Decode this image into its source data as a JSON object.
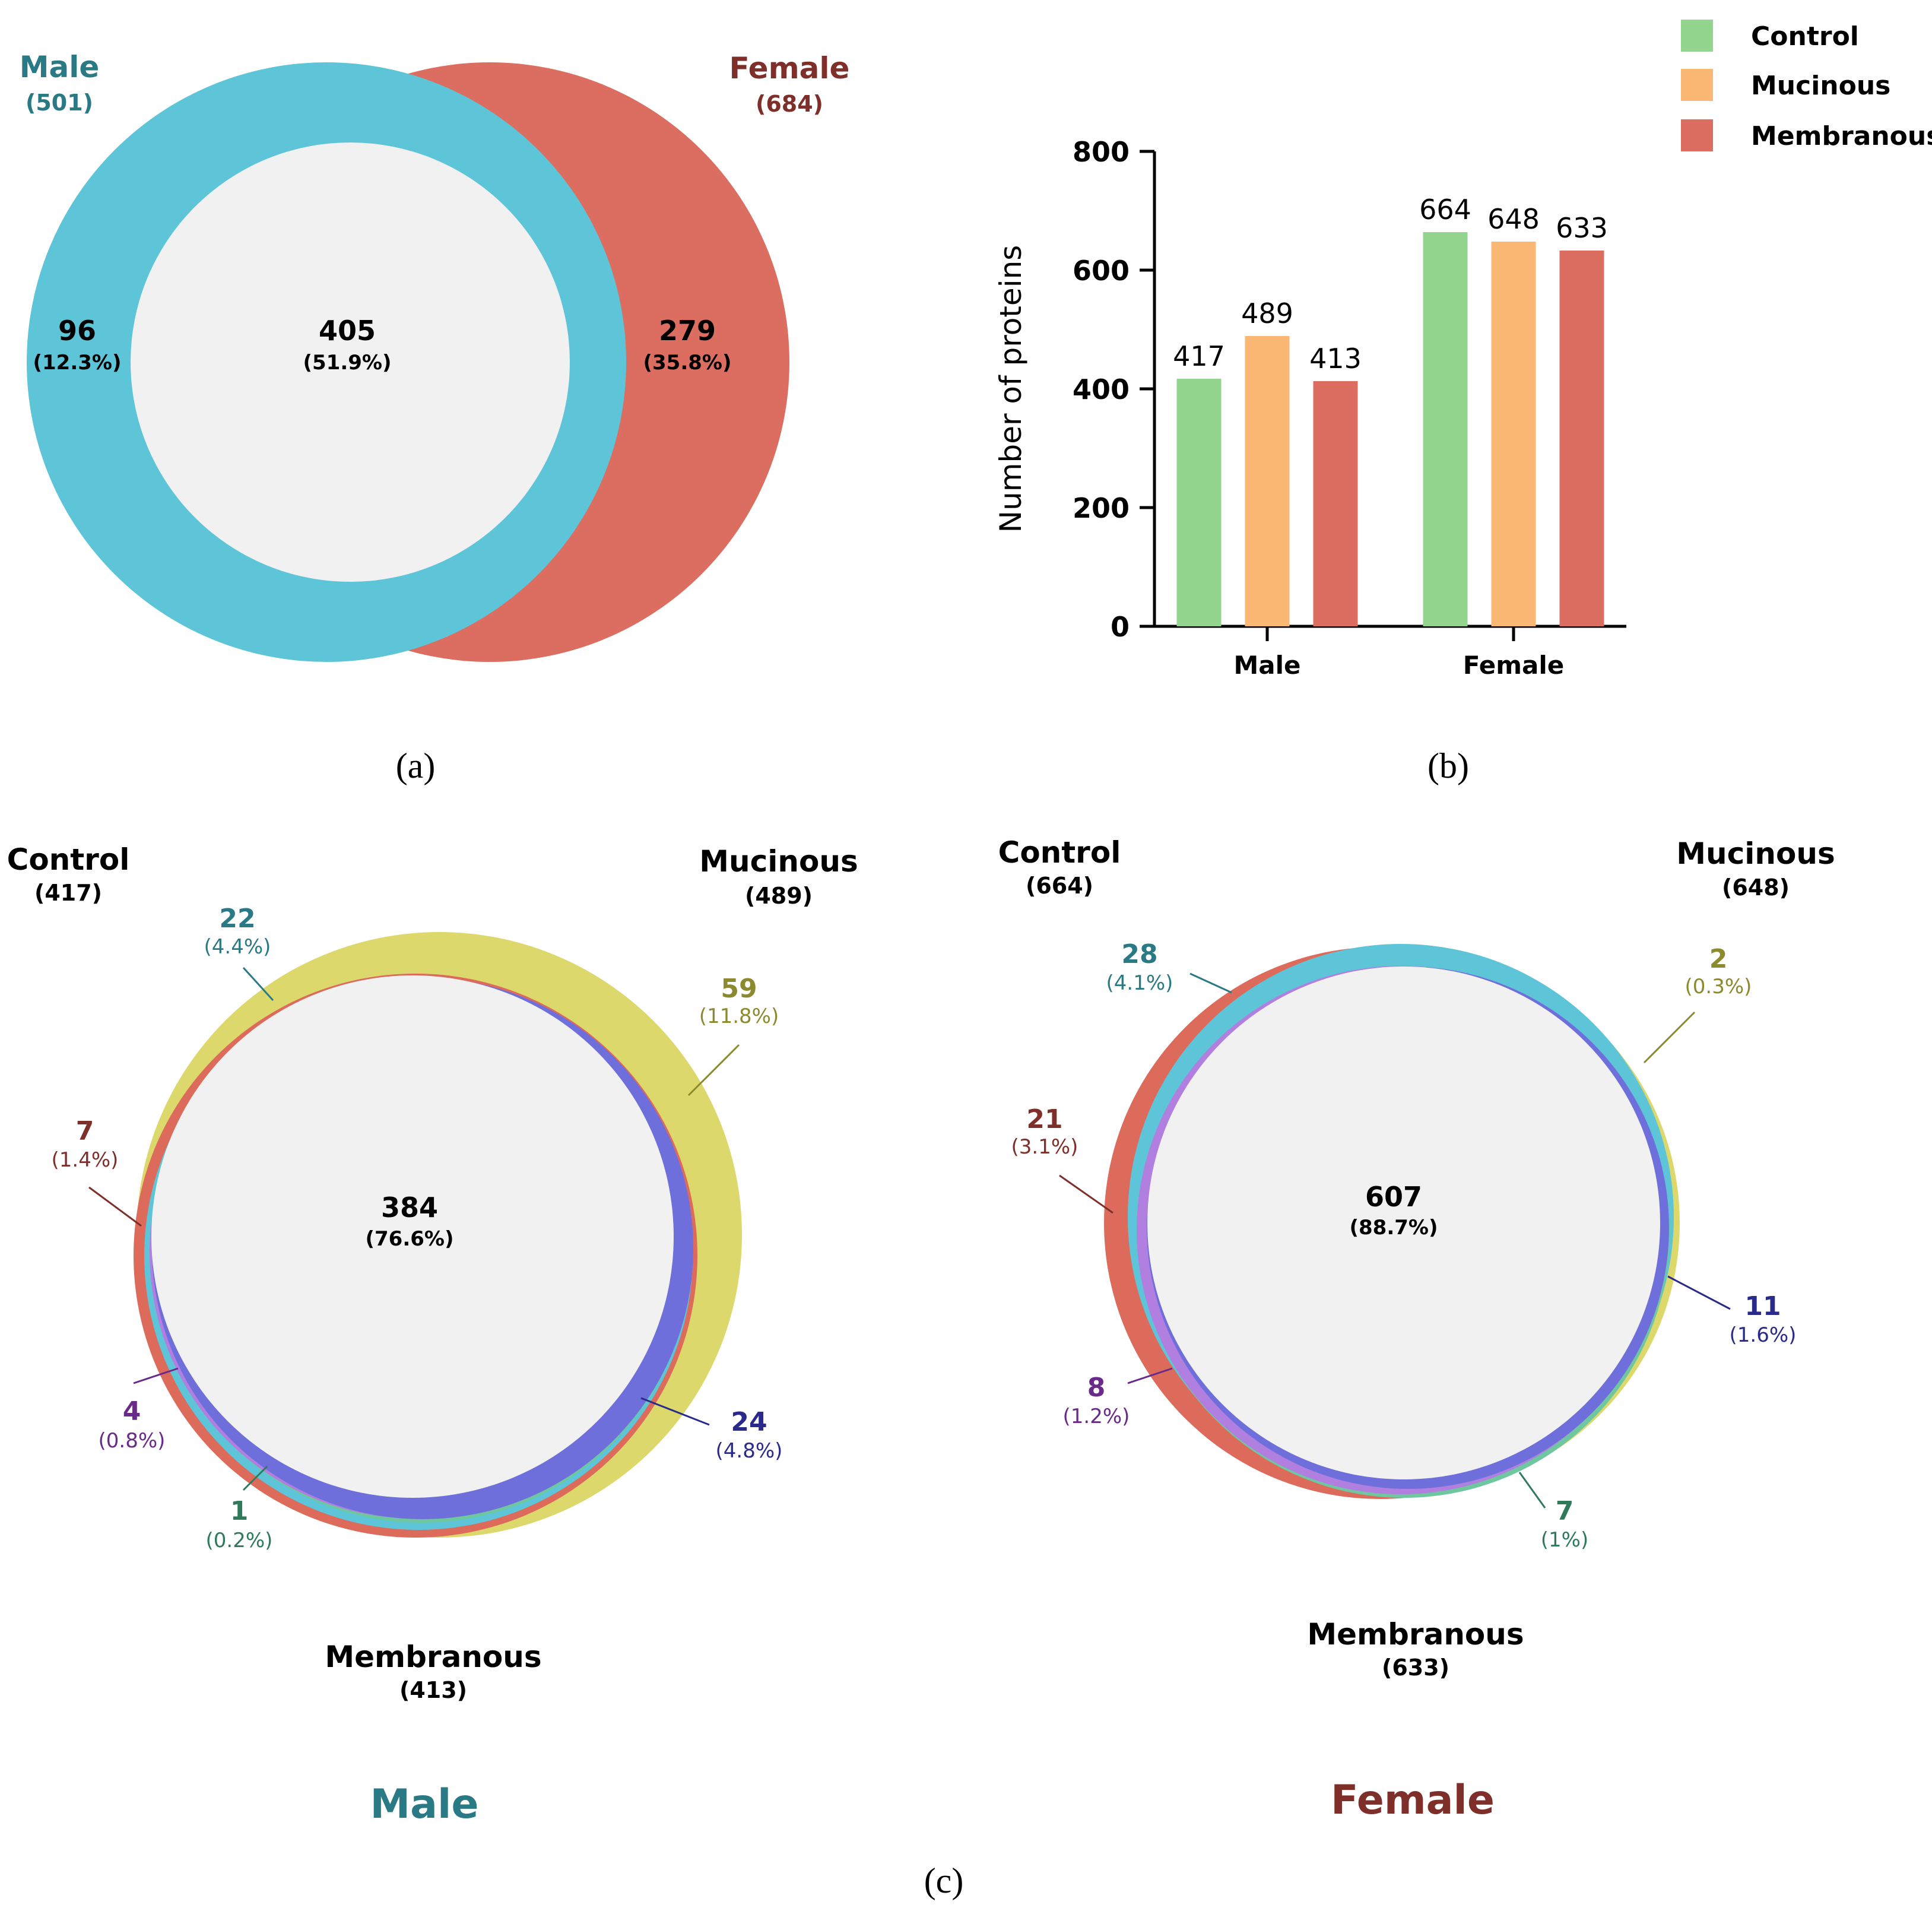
{
  "colors": {
    "male": "#5ec5d8",
    "female": "#db6e61",
    "intersection": "#f1f1f1",
    "male_text": "#2a7a86",
    "female_text": "#7f2f2a",
    "control": "#93d48f",
    "mucinous": "#fbb874",
    "membranous": "#db6e61",
    "c_control": "#dd6b5c",
    "c_mucinous": "#dcd86c",
    "c_membranous": "#6f6fdb",
    "c_teal": "#5ec5d8",
    "c_purple": "#b07fe0",
    "c_green": "#6fc7a0",
    "txt_teal": "#2a7a86",
    "txt_red": "#7f2f2a",
    "txt_olive": "#8b8a2e",
    "txt_navy": "#2a2a8a",
    "txt_purple": "#6a2a8a",
    "txt_green": "#2e7a5a",
    "axis": "#000000"
  },
  "panel_labels": {
    "a": "(a)",
    "b": "(b)",
    "c": "(c)"
  },
  "chart_data": [
    {
      "type": "venn",
      "panel": "a",
      "sets": [
        {
          "name": "Male",
          "total": "(501)"
        },
        {
          "name": "Female",
          "total": "(684)"
        }
      ],
      "regions": {
        "male_only": {
          "count": "96",
          "pct": "(12.3%)"
        },
        "both": {
          "count": "405",
          "pct": "(51.9%)"
        },
        "female_only": {
          "count": "279",
          "pct": "(35.8%)"
        }
      }
    },
    {
      "type": "bar",
      "panel": "b",
      "categories": [
        "Male",
        "Female"
      ],
      "series": [
        {
          "name": "Control",
          "values": [
            417,
            664
          ]
        },
        {
          "name": "Mucinous",
          "values": [
            489,
            648
          ]
        },
        {
          "name": "Membranous",
          "values": [
            413,
            633
          ]
        }
      ],
      "ylabel": "Number of proteins",
      "xlabel": "",
      "ylim": [
        0,
        800
      ],
      "yticks": [
        0,
        200,
        400,
        600,
        800
      ],
      "legend": "top-right",
      "data_labels": true
    },
    {
      "type": "venn",
      "panel": "c-left",
      "title": "Male",
      "sets": [
        {
          "name": "Control",
          "total": "(417)"
        },
        {
          "name": "Mucinous",
          "total": "(489)"
        },
        {
          "name": "Membranous",
          "total": "(413)"
        }
      ],
      "regions": {
        "all_three": {
          "count": "384",
          "pct": "(76.6%)"
        },
        "control_mucinous": {
          "count": "22",
          "pct": "(4.4%)"
        },
        "mucinous_only": {
          "count": "59",
          "pct": "(11.8%)"
        },
        "control_only": {
          "count": "7",
          "pct": "(1.4%)"
        },
        "control_membranous": {
          "count": "4",
          "pct": "(0.8%)"
        },
        "membranous_only": {
          "count": "1",
          "pct": "(0.2%)"
        },
        "mucinous_membranous": {
          "count": "24",
          "pct": "(4.8%)"
        }
      }
    },
    {
      "type": "venn",
      "panel": "c-right",
      "title": "Female",
      "sets": [
        {
          "name": "Control",
          "total": "(664)"
        },
        {
          "name": "Mucinous",
          "total": "(648)"
        },
        {
          "name": "Membranous",
          "total": "(633)"
        }
      ],
      "regions": {
        "all_three": {
          "count": "607",
          "pct": "(88.7%)"
        },
        "control_mucinous": {
          "count": "28",
          "pct": "(4.1%)"
        },
        "mucinous_only": {
          "count": "2",
          "pct": "(0.3%)"
        },
        "control_only": {
          "count": "21",
          "pct": "(3.1%)"
        },
        "mucinous_membranous": {
          "count": "11",
          "pct": "(1.6%)"
        },
        "control_membranous": {
          "count": "8",
          "pct": "(1.2%)"
        },
        "membranous_only": {
          "count": "7",
          "pct": "(1%)"
        }
      }
    }
  ]
}
